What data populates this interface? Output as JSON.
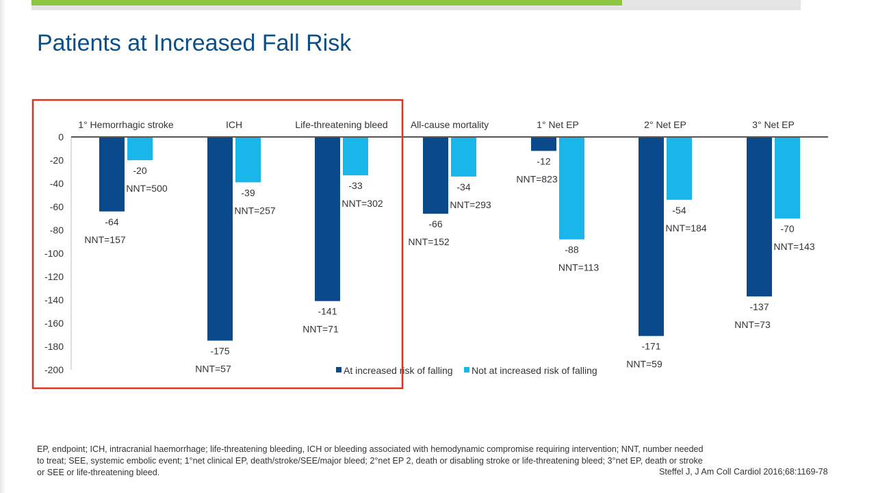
{
  "title": "Patients at Increased Fall Risk",
  "colors": {
    "series1": "#0a4a8c",
    "series2": "#19b6ea",
    "highlight": "#e03220",
    "title": "#0b4f8a",
    "accent_bar": "#8dc63f"
  },
  "chart_data": {
    "type": "bar",
    "categories": [
      "1° Hemorrhagic stroke",
      "ICH",
      "Life-threatening bleed",
      "All-cause mortality",
      "1° Net EP",
      "2° Net EP",
      "3° Net EP"
    ],
    "series": [
      {
        "name": "At increased risk of falling",
        "values": [
          -64,
          -175,
          -141,
          -66,
          -12,
          -171,
          -137
        ],
        "nnt": [
          "NNT=157",
          "NNT=57",
          "NNT=71",
          "NNT=152",
          "NNT=823",
          "NNT=59",
          "NNT=73"
        ]
      },
      {
        "name": "Not at increased risk of falling",
        "values": [
          -20,
          -39,
          -33,
          -34,
          -88,
          -54,
          -70
        ],
        "nnt": [
          "NNT=500",
          "NNT=257",
          "NNT=302",
          "NNT=293",
          "NNT=113",
          "NNT=184",
          "NNT=143"
        ]
      }
    ],
    "yticks": [
      "0",
      "-20",
      "-40",
      "-60",
      "-80",
      "-100",
      "-120",
      "-140",
      "-160",
      "-180",
      "-200"
    ],
    "ylim": [
      -200,
      0
    ],
    "legend_position": "bottom",
    "highlight": "first three categories boxed in red"
  },
  "footnote": "EP, endpoint; ICH, intracranial haemorrhage; life-threatening bleeding, ICH or bleeding associated with hemodynamic compromise requiring intervention; NNT, number needed to treat; SEE, systemic embolic event; 1°net clinical EP, death/stroke/SEE/major bleed; 2°net EP 2, death or disabling stroke or life-threatening bleed; 3°net EP, death or stroke or SEE or life-threatening bleed.",
  "citation": "Steffel J, J Am Coll Cardiol 2016;68:1169-78"
}
